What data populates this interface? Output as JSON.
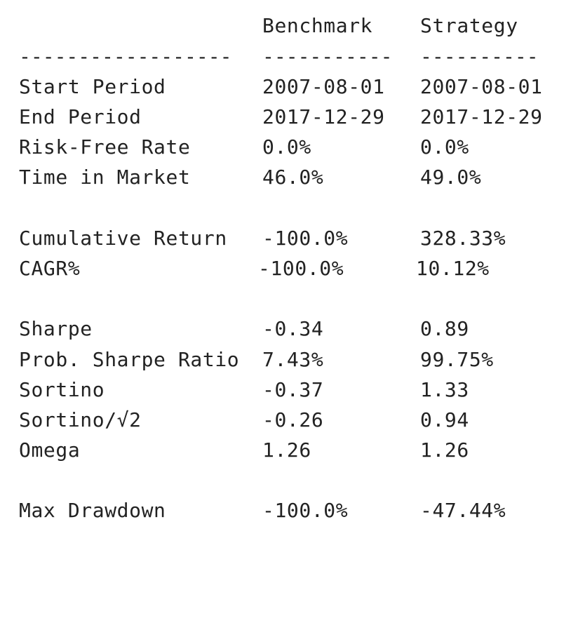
{
  "header": {
    "benchmark": "Benchmark",
    "strategy": "Strategy"
  },
  "separator": {
    "metric": "------------------",
    "benchmark": "-----------",
    "strategy": "----------"
  },
  "rows": [
    {
      "metric": "Start Period",
      "benchmark": "2007-08-01",
      "strategy": "2007-08-01"
    },
    {
      "metric": "End Period",
      "benchmark": "2017-12-29",
      "strategy": "2017-12-29"
    },
    {
      "metric": "Risk-Free Rate",
      "benchmark": "0.0%",
      "strategy": "0.0%"
    },
    {
      "metric": "Time in Market",
      "benchmark": "46.0%",
      "strategy": "49.0%"
    },
    {
      "metric": "Cumulative Return",
      "benchmark": "-100.0%",
      "strategy": "328.33%"
    },
    {
      "metric": "CAGR%",
      "benchmark": "-100.0%",
      "strategy": "10.12%"
    },
    {
      "metric": "Sharpe",
      "benchmark": "-0.34",
      "strategy": "0.89"
    },
    {
      "metric": "Prob. Sharpe Ratio",
      "benchmark": "7.43%",
      "strategy": "99.75%"
    },
    {
      "metric": "Sortino",
      "benchmark": "-0.37",
      "strategy": "1.33"
    },
    {
      "metric": "Sortino/√2",
      "benchmark": "-0.26",
      "strategy": "0.94"
    },
    {
      "metric": "Omega",
      "benchmark": "1.26",
      "strategy": "1.26"
    },
    {
      "metric": "Max Drawdown",
      "benchmark": "-100.0%",
      "strategy": "-47.44%"
    }
  ]
}
